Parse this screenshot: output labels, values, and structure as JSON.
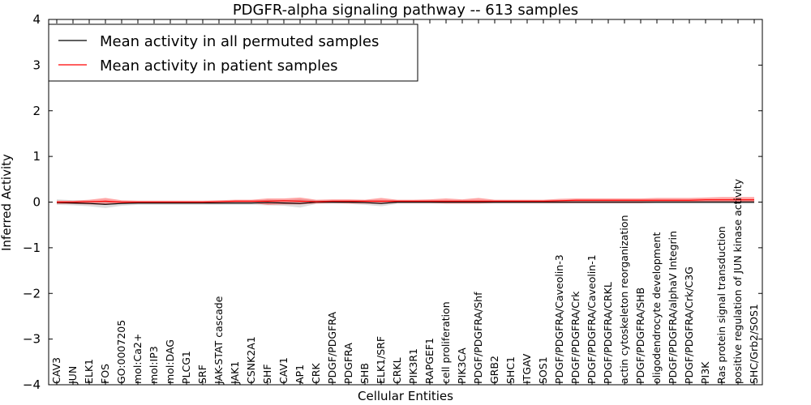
{
  "chart_data": {
    "type": "line",
    "title": "PDGFR-alpha signaling pathway -- 613 samples",
    "xlabel": "Cellular Entities",
    "ylabel": "Inferred Activity",
    "ylim": [
      -4,
      4
    ],
    "yticks": [
      -4,
      -3,
      -2,
      -1,
      0,
      1,
      2,
      3,
      4
    ],
    "ytick_labels": [
      "−4",
      "−3",
      "−2",
      "−1",
      "0",
      "1",
      "2",
      "3",
      "4"
    ],
    "legend_position": "top-left",
    "categories": [
      "CAV3",
      "JUN",
      "ELK1",
      "FOS",
      "GO:0007205",
      "mol:Ca2+",
      "mol:IP3",
      "mol:DAG",
      "PLCG1",
      "SRF",
      "JAK-STAT cascade",
      "JAK1",
      "CSNK2A1",
      "SHF",
      "CAV1",
      "AP1",
      "CRK",
      "PDGF/PDGFRA",
      "PDGFRA",
      "SHB",
      "ELK1/SRF",
      "CRKL",
      "PIK3R1",
      "RAPGEF1",
      "cell proliferation",
      "PIK3CA",
      "PDGF/PDGFRA/Shf",
      "GRB2",
      "SHC1",
      "ITGAV",
      "SOS1",
      "PDGF/PDGFRA/Caveolin-3",
      "PDGF/PDGFRA/Crk",
      "PDGF/PDGFRA/Caveolin-1",
      "PDGF/PDGFRA/CRKL",
      "actin cytoskeleton reorganization",
      "PDGF/PDGFRA/SHB",
      "oligodendrocyte development",
      "PDGF/PDGFRA/alphaV Integrin",
      "PDGF/PDGFRA/Crk/C3G",
      "PI3K",
      "Ras protein signal transduction",
      "positive regulation of JUN kinase activity",
      "SHC/Grb2/SOS1"
    ],
    "series": [
      {
        "name": "Mean activity in all permuted samples",
        "color": "#000000",
        "values": [
          -0.01,
          -0.02,
          -0.03,
          -0.05,
          -0.03,
          -0.02,
          -0.02,
          -0.02,
          -0.02,
          -0.02,
          -0.02,
          -0.02,
          -0.02,
          -0.01,
          -0.02,
          -0.03,
          0.0,
          0.0,
          0.0,
          -0.01,
          -0.03,
          0.0,
          0.0,
          0.0,
          0.0,
          0.0,
          0.0,
          0.0,
          0.0,
          0.0,
          0.0,
          0.0,
          0.0,
          0.0,
          0.0,
          0.0,
          0.0,
          0.0,
          0.0,
          0.0,
          0.0,
          0.0,
          0.0,
          0.0
        ],
        "lower": [
          -0.06,
          -0.07,
          -0.09,
          -0.13,
          -0.08,
          -0.06,
          -0.06,
          -0.06,
          -0.06,
          -0.06,
          -0.06,
          -0.06,
          -0.06,
          -0.07,
          -0.08,
          -0.12,
          -0.04,
          -0.04,
          -0.04,
          -0.06,
          -0.09,
          -0.04,
          -0.04,
          -0.04,
          -0.04,
          -0.04,
          -0.04,
          -0.04,
          -0.04,
          -0.04,
          -0.04,
          -0.04,
          -0.04,
          -0.04,
          -0.04,
          -0.04,
          -0.04,
          -0.04,
          -0.04,
          -0.04,
          -0.04,
          -0.04,
          -0.04,
          -0.04
        ],
        "upper": [
          0.06,
          0.04,
          0.03,
          0.02,
          0.02,
          0.02,
          0.02,
          0.02,
          0.02,
          0.02,
          0.02,
          0.02,
          0.02,
          0.05,
          0.04,
          0.06,
          0.04,
          0.04,
          0.04,
          0.04,
          0.04,
          0.04,
          0.04,
          0.04,
          0.04,
          0.04,
          0.04,
          0.04,
          0.04,
          0.04,
          0.04,
          0.04,
          0.04,
          0.04,
          0.04,
          0.04,
          0.04,
          0.04,
          0.04,
          0.04,
          0.04,
          0.04,
          0.04,
          0.04
        ]
      },
      {
        "name": "Mean activity in patient samples",
        "color": "#ff0000",
        "values": [
          0.0,
          0.0,
          0.01,
          0.02,
          0.0,
          0.0,
          0.0,
          0.0,
          0.0,
          0.0,
          0.01,
          0.02,
          0.02,
          0.02,
          0.03,
          0.02,
          0.01,
          0.02,
          0.02,
          0.02,
          0.02,
          0.02,
          0.02,
          0.02,
          0.02,
          0.02,
          0.02,
          0.02,
          0.02,
          0.02,
          0.02,
          0.03,
          0.04,
          0.04,
          0.04,
          0.04,
          0.04,
          0.04,
          0.04,
          0.04,
          0.05,
          0.05,
          0.05,
          0.05
        ],
        "lower": [
          -0.04,
          -0.04,
          -0.05,
          -0.06,
          -0.04,
          -0.03,
          -0.03,
          -0.03,
          -0.03,
          -0.03,
          -0.03,
          -0.02,
          -0.02,
          -0.06,
          -0.05,
          -0.05,
          -0.03,
          -0.02,
          -0.03,
          -0.03,
          -0.04,
          -0.02,
          -0.02,
          -0.02,
          -0.03,
          -0.03,
          -0.03,
          -0.02,
          -0.02,
          -0.02,
          -0.02,
          -0.02,
          -0.02,
          -0.02,
          -0.02,
          -0.02,
          -0.02,
          -0.01,
          -0.01,
          -0.01,
          0.0,
          0.0,
          0.0,
          0.0
        ],
        "upper": [
          0.03,
          0.03,
          0.05,
          0.09,
          0.04,
          0.03,
          0.03,
          0.03,
          0.03,
          0.03,
          0.04,
          0.05,
          0.05,
          0.08,
          0.08,
          0.1,
          0.05,
          0.06,
          0.06,
          0.05,
          0.09,
          0.05,
          0.05,
          0.06,
          0.08,
          0.06,
          0.09,
          0.05,
          0.05,
          0.05,
          0.05,
          0.07,
          0.08,
          0.08,
          0.08,
          0.08,
          0.08,
          0.09,
          0.09,
          0.09,
          0.1,
          0.11,
          0.11,
          0.11
        ]
      }
    ]
  }
}
